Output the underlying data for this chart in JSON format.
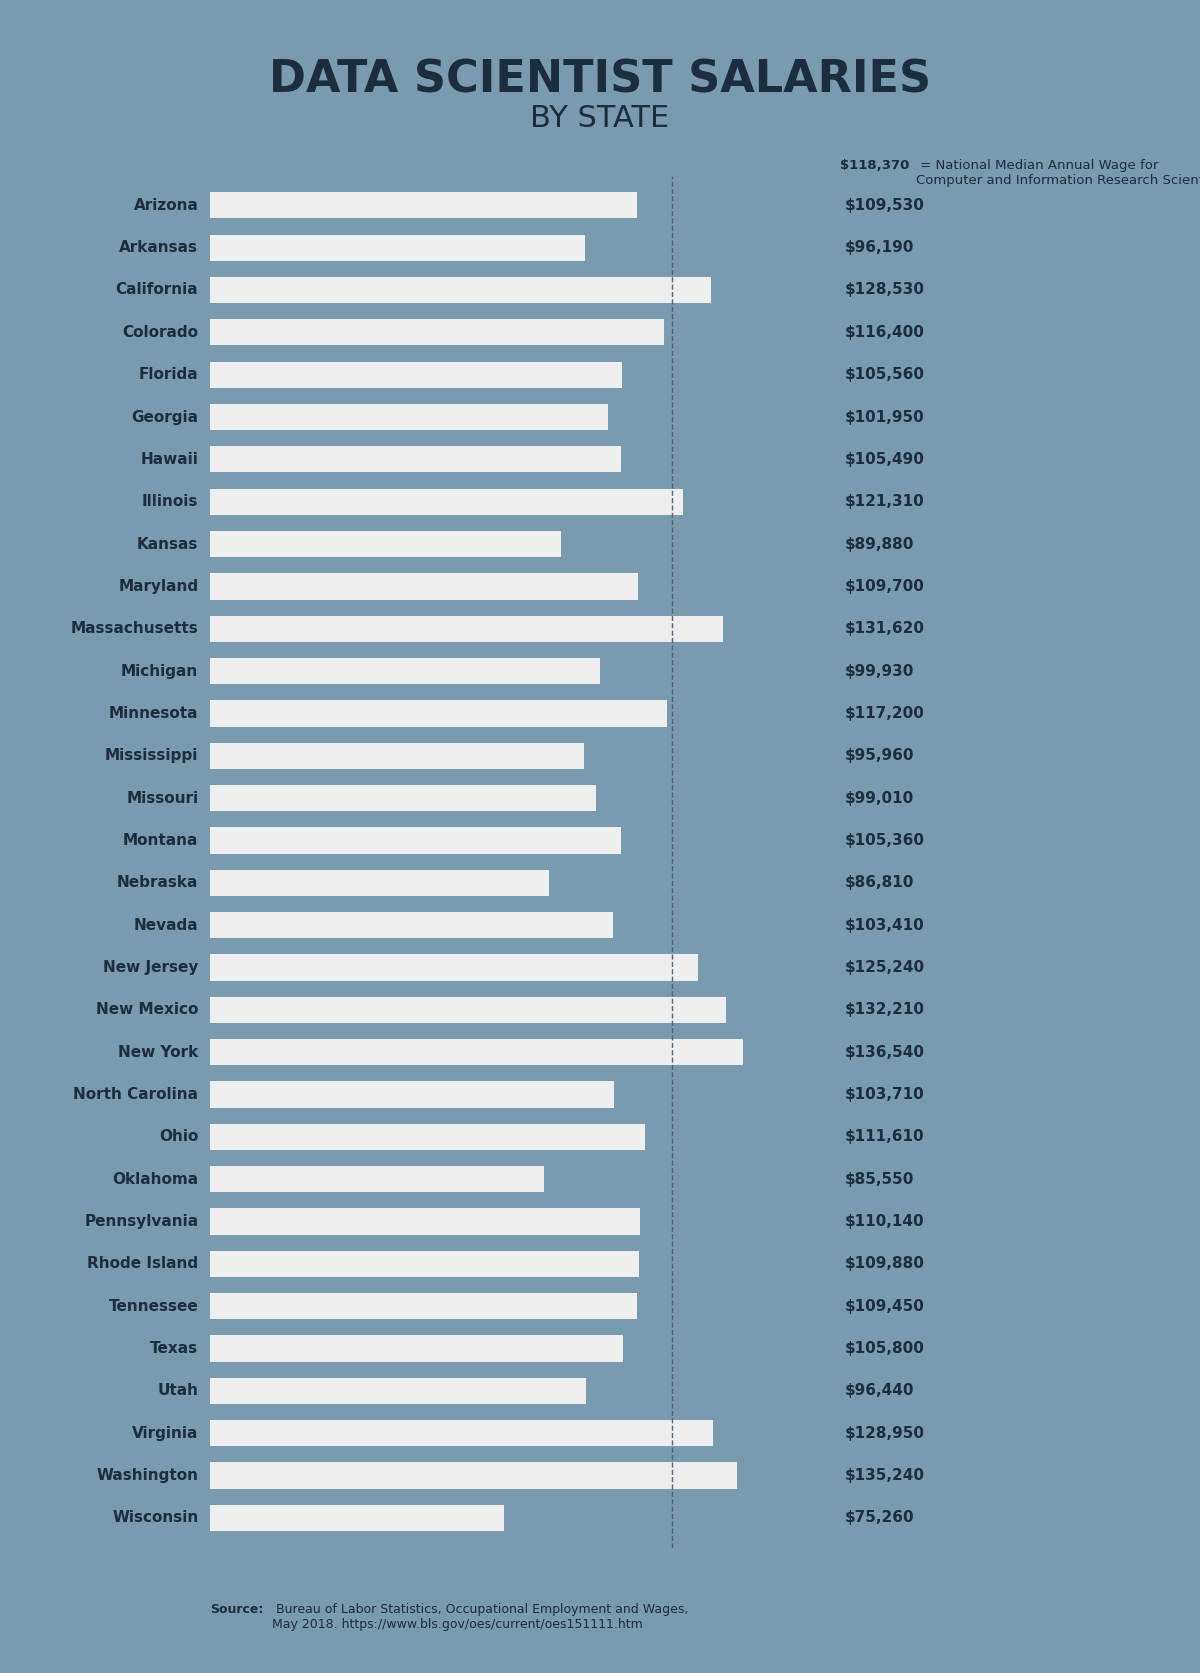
{
  "title_line1": "DATA SCIENTIST SALARIES",
  "title_line2": "BY STATE",
  "states": [
    "Arizona",
    "Arkansas",
    "California",
    "Colorado",
    "Florida",
    "Georgia",
    "Hawaii",
    "Illinois",
    "Kansas",
    "Maryland",
    "Massachusetts",
    "Michigan",
    "Minnesota",
    "Mississippi",
    "Missouri",
    "Montana",
    "Nebraska",
    "Nevada",
    "New Jersey",
    "New Mexico",
    "New York",
    "North Carolina",
    "Ohio",
    "Oklahoma",
    "Pennsylvania",
    "Rhode Island",
    "Tennessee",
    "Texas",
    "Utah",
    "Virginia",
    "Washington",
    "Wisconsin"
  ],
  "salaries": [
    109530,
    96190,
    128530,
    116400,
    105560,
    101950,
    105490,
    121310,
    89880,
    109700,
    131620,
    99930,
    117200,
    95960,
    99010,
    105360,
    86810,
    103410,
    125240,
    132210,
    136540,
    103710,
    111610,
    85550,
    110140,
    109880,
    109450,
    105800,
    96440,
    128950,
    135240,
    75260
  ],
  "median_line": 118370,
  "median_label_bold": "$118,370",
  "median_label_rest": " = National Median Annual Wage for\nComputer and Information Research Scientists",
  "source_bold": "Source:",
  "source_text": " Bureau of Labor Statistics, Occupational Employment and Wages,\nMay 2018. https://www.bls.gov/oes/current/oes151111.htm",
  "background_color": "#7a9ab0",
  "bar_color": "#eeeeee",
  "title_color": "#1c2d3e",
  "label_color": "#1c2d3e",
  "salary_color": "#1c2d3e",
  "median_color": "#1c2d3e",
  "dashed_line_color": "#4a5a6a",
  "connector_color": "#8aaan0",
  "xlim_max": 160000,
  "bar_height": 0.62
}
